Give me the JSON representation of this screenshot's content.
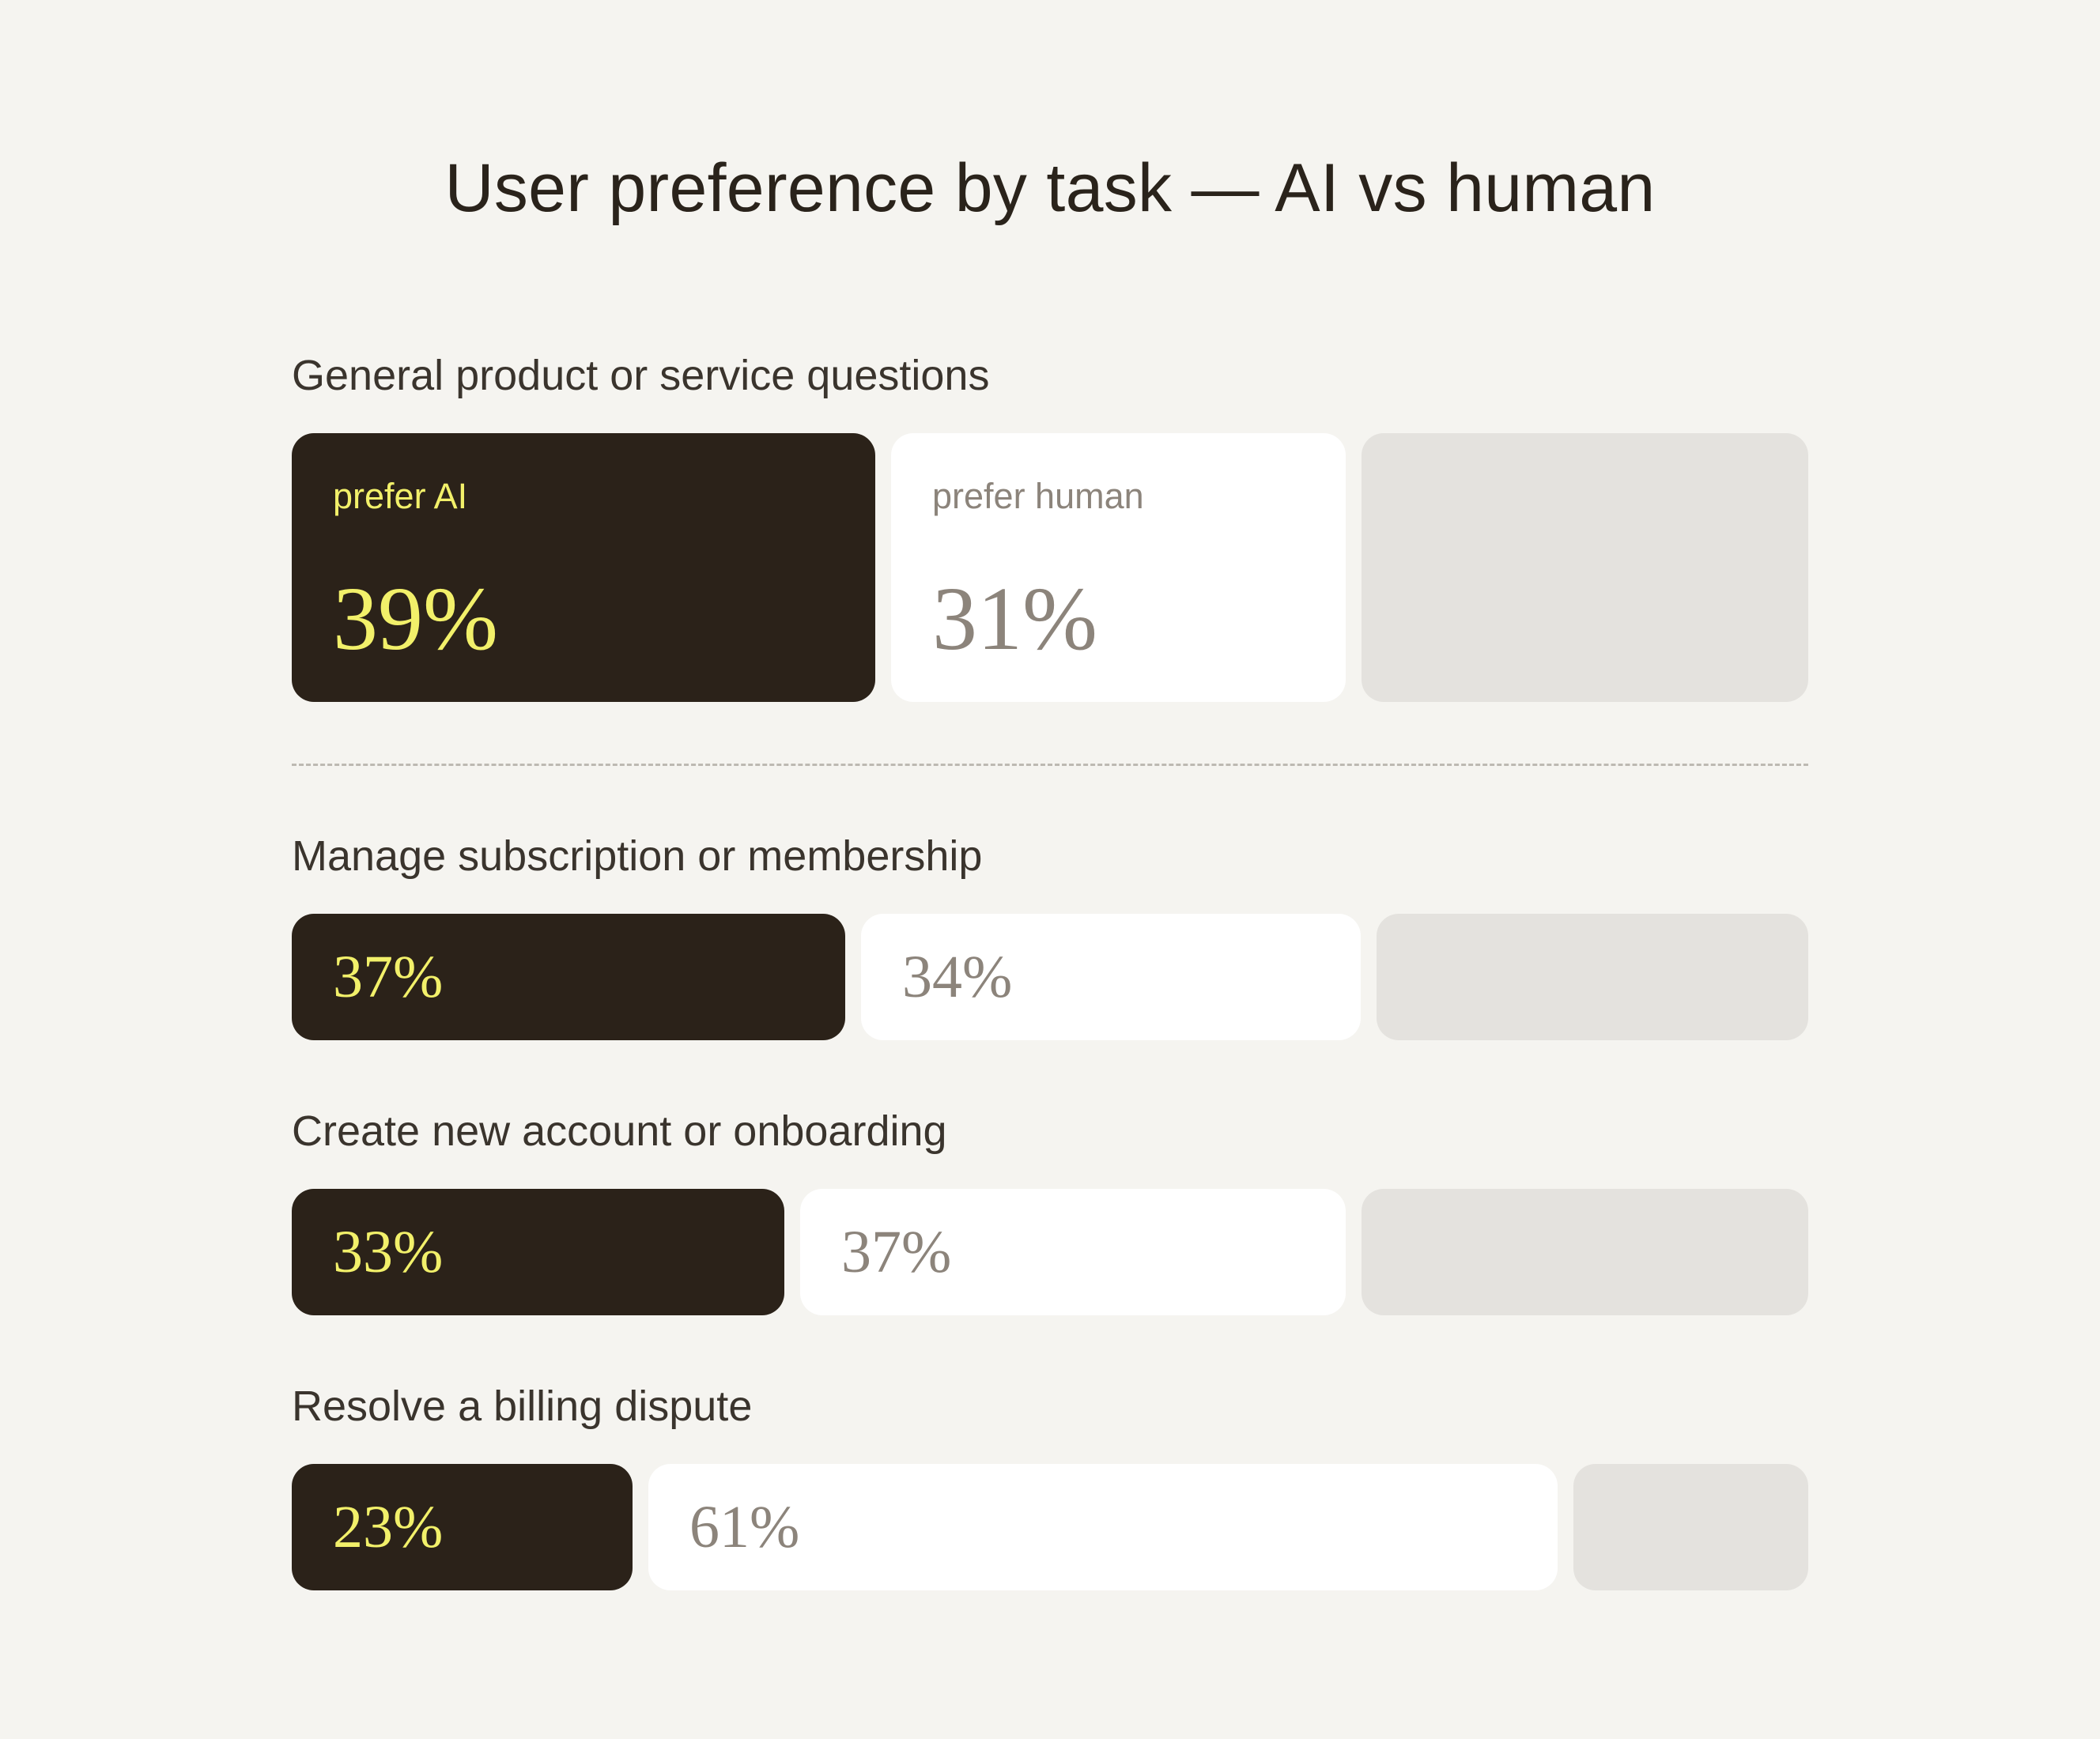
{
  "colors": {
    "background": "#f5f4f0",
    "ai_fill": "#2b2219",
    "ai_text": "#f2f06a",
    "human_fill": "#ffffff",
    "human_text": "#8c847b",
    "remainder_fill": "#e4e2de",
    "title_text": "#2a231b"
  },
  "chart_data": {
    "type": "bar",
    "orientation": "horizontal",
    "stacked": true,
    "title": "User preference by task — AI vs human",
    "unit": "%",
    "xlim": [
      0,
      100
    ],
    "categories": [
      "General product or service questions",
      "Manage subscription or membership",
      "Create new account or onboarding",
      "Resolve a billing dispute"
    ],
    "series": [
      {
        "name": "prefer AI",
        "values": [
          39,
          37,
          33,
          23
        ]
      },
      {
        "name": "prefer human",
        "values": [
          31,
          34,
          37,
          61
        ]
      }
    ],
    "value_labels": {
      "ai": [
        "39%",
        "37%",
        "33%",
        "23%"
      ],
      "human": [
        "31%",
        "34%",
        "37%",
        "61%"
      ]
    },
    "legend": "inline in first row",
    "grid": false
  }
}
